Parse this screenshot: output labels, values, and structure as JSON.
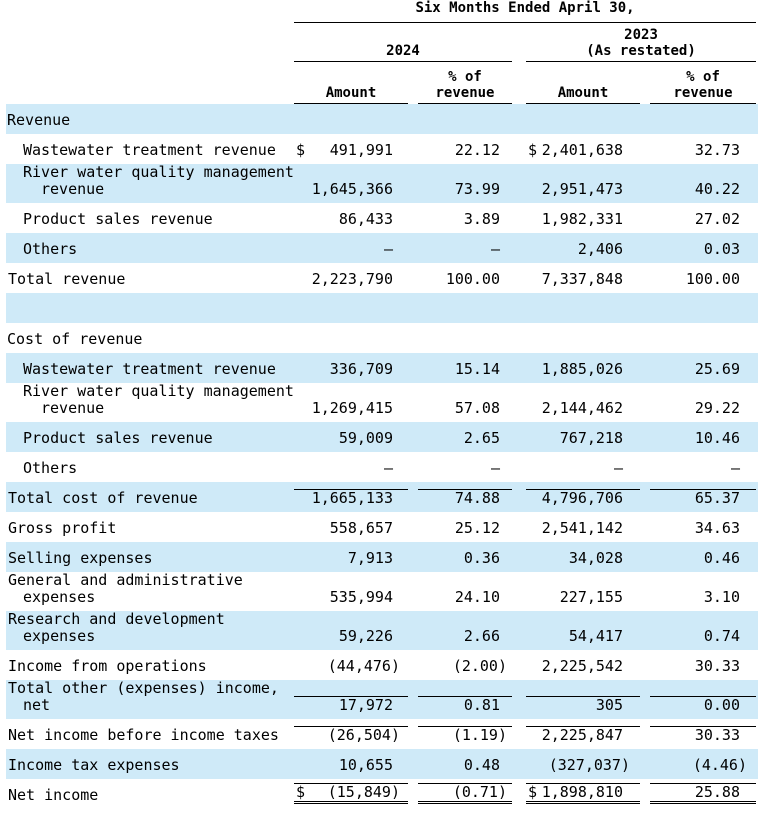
{
  "header": {
    "period": "Six Months Ended April 30,",
    "groups": [
      {
        "year": "2024",
        "columns": [
          "Amount",
          "% of revenue"
        ]
      },
      {
        "year": "2023",
        "note": "(As restated)",
        "columns": [
          "Amount",
          "% of revenue"
        ]
      }
    ]
  },
  "sections": [
    {
      "title": "Revenue",
      "items": [
        {
          "label": "Wastewater treatment revenue",
          "currency_2024": "$",
          "amount_2024": "491,991",
          "percent_2024": "22.12",
          "currency_2023": "$",
          "amount_2023": "2,401,638",
          "percent_2023": "32.73"
        },
        {
          "label": "River water quality management revenue",
          "amount_2024": "1,645,366",
          "percent_2024": "73.99",
          "amount_2023": "2,951,473",
          "percent_2023": "40.22"
        },
        {
          "label": "Product sales revenue",
          "amount_2024": "86,433",
          "percent_2024": "3.89",
          "amount_2023": "1,982,331",
          "percent_2023": "27.02"
        },
        {
          "label": "Others",
          "amount_2024": "—",
          "percent_2024": "—",
          "amount_2023": "2,406",
          "percent_2023": "0.03"
        }
      ],
      "total": {
        "label": "Total revenue",
        "amount_2024": "2,223,790",
        "percent_2024": "100.00",
        "amount_2023": "7,337,848",
        "percent_2023": "100.00"
      }
    },
    {
      "title": "Cost of revenue",
      "items": [
        {
          "label": "Wastewater treatment revenue",
          "amount_2024": "336,709",
          "percent_2024": "15.14",
          "amount_2023": "1,885,026",
          "percent_2023": "25.69"
        },
        {
          "label": "River water quality management revenue",
          "amount_2024": "1,269,415",
          "percent_2024": "57.08",
          "amount_2023": "2,144,462",
          "percent_2023": "29.22"
        },
        {
          "label": "Product sales revenue",
          "amount_2024": "59,009",
          "percent_2024": "2.65",
          "amount_2023": "767,218",
          "percent_2023": "10.46"
        },
        {
          "label": "Others",
          "amount_2024": "—",
          "percent_2024": "—",
          "amount_2023": "—",
          "percent_2023": "—"
        }
      ],
      "total": {
        "label": "Total cost of revenue",
        "amount_2024": "1,665,133",
        "percent_2024": "74.88",
        "amount_2023": "4,796,706",
        "percent_2023": "65.37"
      }
    }
  ],
  "rows": [
    {
      "label": "Gross profit",
      "amount_2024": "558,657",
      "percent_2024": "25.12",
      "amount_2023": "2,541,142",
      "percent_2023": "34.63"
    },
    {
      "label": "Selling expenses",
      "amount_2024": "7,913",
      "percent_2024": "0.36",
      "amount_2023": "34,028",
      "percent_2023": "0.46"
    },
    {
      "label": "General and administrative expenses",
      "amount_2024": "535,994",
      "percent_2024": "24.10",
      "amount_2023": "227,155",
      "percent_2023": "3.10"
    },
    {
      "label": "Research and development expenses",
      "amount_2024": "59,226",
      "percent_2024": "2.66",
      "amount_2023": "54,417",
      "percent_2023": "0.74"
    },
    {
      "label": "Income from operations",
      "amount_2024": "(44,476)",
      "percent_2024": "(2.00)",
      "amount_2023": "2,225,542",
      "percent_2023": "30.33"
    },
    {
      "label": "Total other (expenses) income, net",
      "amount_2024": "17,972",
      "percent_2024": "0.81",
      "amount_2023": "305",
      "percent_2023": "0.00"
    },
    {
      "label": "Net income before income taxes",
      "amount_2024": "(26,504)",
      "percent_2024": "(1.19)",
      "amount_2023": "2,225,847",
      "percent_2023": "30.33"
    },
    {
      "label": "Income tax expenses",
      "amount_2024": "10,655",
      "percent_2024": "0.48",
      "amount_2023": "(327,037)",
      "percent_2023": "(4.46)"
    },
    {
      "label": "Net income",
      "currency_2024": "$",
      "amount_2024": "(15,849)",
      "percent_2024": "(0.71)",
      "currency_2023": "$",
      "amount_2023": "1,898,810",
      "percent_2023": "25.88"
    }
  ]
}
